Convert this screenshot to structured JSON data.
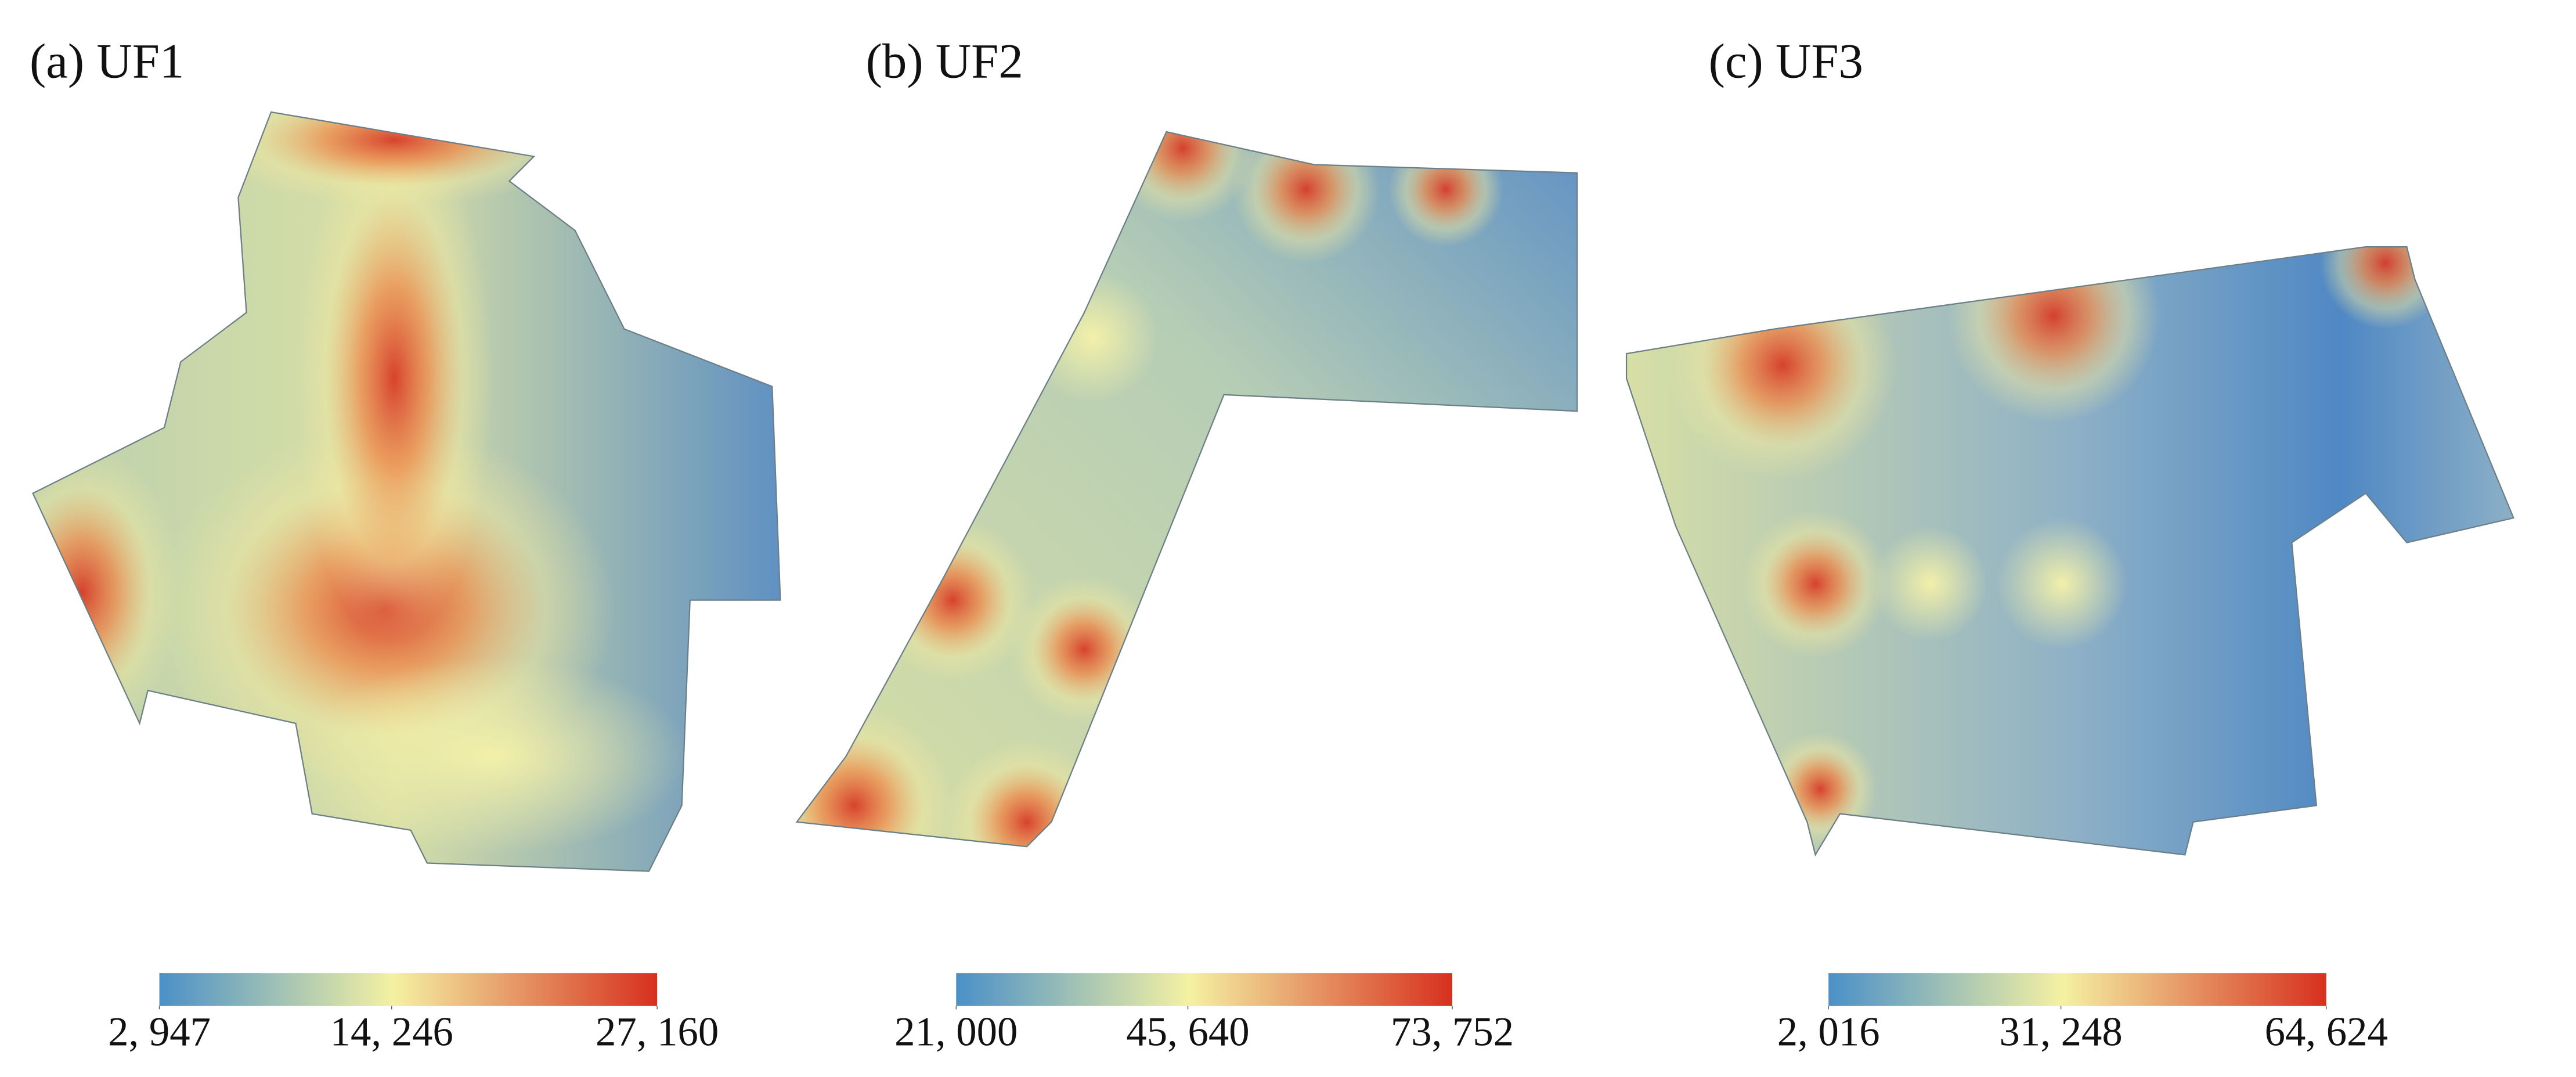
{
  "panels": [
    {
      "title": "(a) UF1",
      "colorbar": {
        "ticks": [
          {
            "value": 2947,
            "label": "2, 947"
          },
          {
            "value": 14246,
            "label": "14, 246"
          },
          {
            "value": 27160,
            "label": "27, 160"
          }
        ]
      }
    },
    {
      "title": "(b) UF2",
      "colorbar": {
        "ticks": [
          {
            "value": 21000,
            "label": "21, 000"
          },
          {
            "value": 45640,
            "label": "45, 640"
          },
          {
            "value": 73752,
            "label": "73, 752"
          }
        ]
      }
    },
    {
      "title": "(c) UF3",
      "colorbar": {
        "ticks": [
          {
            "value": 2016,
            "label": "2, 016"
          },
          {
            "value": 31248,
            "label": "31, 248"
          },
          {
            "value": 64624,
            "label": "64, 624"
          }
        ]
      }
    }
  ]
}
